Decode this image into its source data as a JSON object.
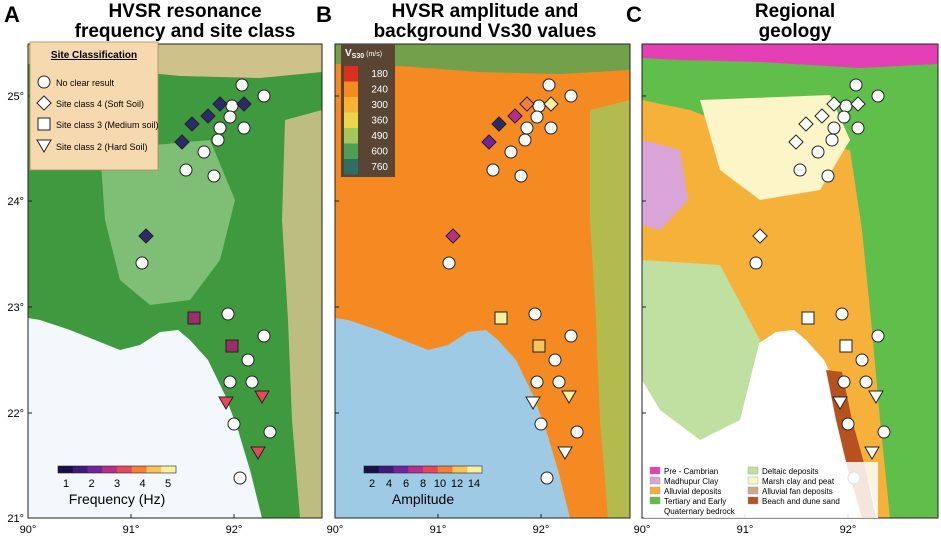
{
  "panels": [
    {
      "letter": "A",
      "title_line1": "HVSR resonance",
      "title_line2": "frequency and site class"
    },
    {
      "letter": "B",
      "title_line1": "HVSR amplitude and",
      "title_line2": "background Vs30 values"
    },
    {
      "letter": "C",
      "title_line1": "Regional",
      "title_line2": "geology"
    }
  ],
  "axes": {
    "lat_labels": [
      "25°",
      "24°",
      "23°",
      "22°",
      "21°"
    ],
    "lon_labels": [
      "90°",
      "91°",
      "92°"
    ]
  },
  "site_legend": {
    "title": "Site Classification",
    "items": [
      {
        "symbol": "circle",
        "label": "No clear result"
      },
      {
        "symbol": "diamond",
        "label": "Site class 4 (Soft Soil)"
      },
      {
        "symbol": "square",
        "label": "Site class 3 (Medium soil)"
      },
      {
        "symbol": "triangle",
        "label": "Site class 2 (Hard Soil)"
      }
    ]
  },
  "frequency_bar": {
    "label": "Frequency (Hz)",
    "ticks": [
      "1",
      "2",
      "3",
      "4",
      "5"
    ],
    "colors": [
      "#1b1046",
      "#3f1a7a",
      "#76229a",
      "#b5308a",
      "#e24a5a",
      "#f47f3a",
      "#f7c35a",
      "#f6f0a0"
    ]
  },
  "amplitude_bar": {
    "label": "Amplitude",
    "ticks": [
      "2",
      "4",
      "6",
      "8",
      "10",
      "12",
      "14"
    ],
    "colors": [
      "#1b1046",
      "#3f1a7a",
      "#76229a",
      "#b5308a",
      "#e24a5a",
      "#f47f3a",
      "#f7c35a",
      "#f6f0a0"
    ]
  },
  "vs30_legend": {
    "title_main": "V",
    "title_sub": "S30",
    "unit": "(m/s)",
    "entries": [
      {
        "value": "180",
        "color": "#d7301f"
      },
      {
        "value": "240",
        "color": "#f58a22"
      },
      {
        "value": "300",
        "color": "#f9b233"
      },
      {
        "value": "360",
        "color": "#e9d64a"
      },
      {
        "value": "490",
        "color": "#a3c75a"
      },
      {
        "value": "600",
        "color": "#4f9e55"
      },
      {
        "value": "760",
        "color": "#2f6f63"
      }
    ]
  },
  "geology_legend": [
    {
      "label": "Pre - Cambrian",
      "color": "#e43fb5"
    },
    {
      "label": "Madhupur Clay",
      "color": "#d9a5d8"
    },
    {
      "label": "Alluvial deposits",
      "color": "#f6b13a"
    },
    {
      "label": "Tertiary and Early",
      "label2": "Quaternary bedrock",
      "color": "#5fbf4a"
    },
    {
      "label": "Deltaic deposits",
      "color": "#bfe0a0"
    },
    {
      "label": "Marsh clay and peat",
      "color": "#fbf5c8"
    },
    {
      "label": "Alluvial fan deposits",
      "color": "#c9a98a"
    },
    {
      "label": "Beach and dune sand",
      "color": "#b5521f"
    }
  ],
  "colors": {
    "terrain_green": "#3f9a3f",
    "terrain_light": "#8fc783",
    "terrain_tan": "#e8c898",
    "sea_a": "#f2f8fb",
    "vs30_orange": "#f58a22",
    "sea_b": "#9ecae6",
    "geo_green": "#5fbf4a",
    "geo_orange": "#f6b13a",
    "geo_sea": "#ffffff",
    "legend_bg": "#f7d9b0"
  }
}
